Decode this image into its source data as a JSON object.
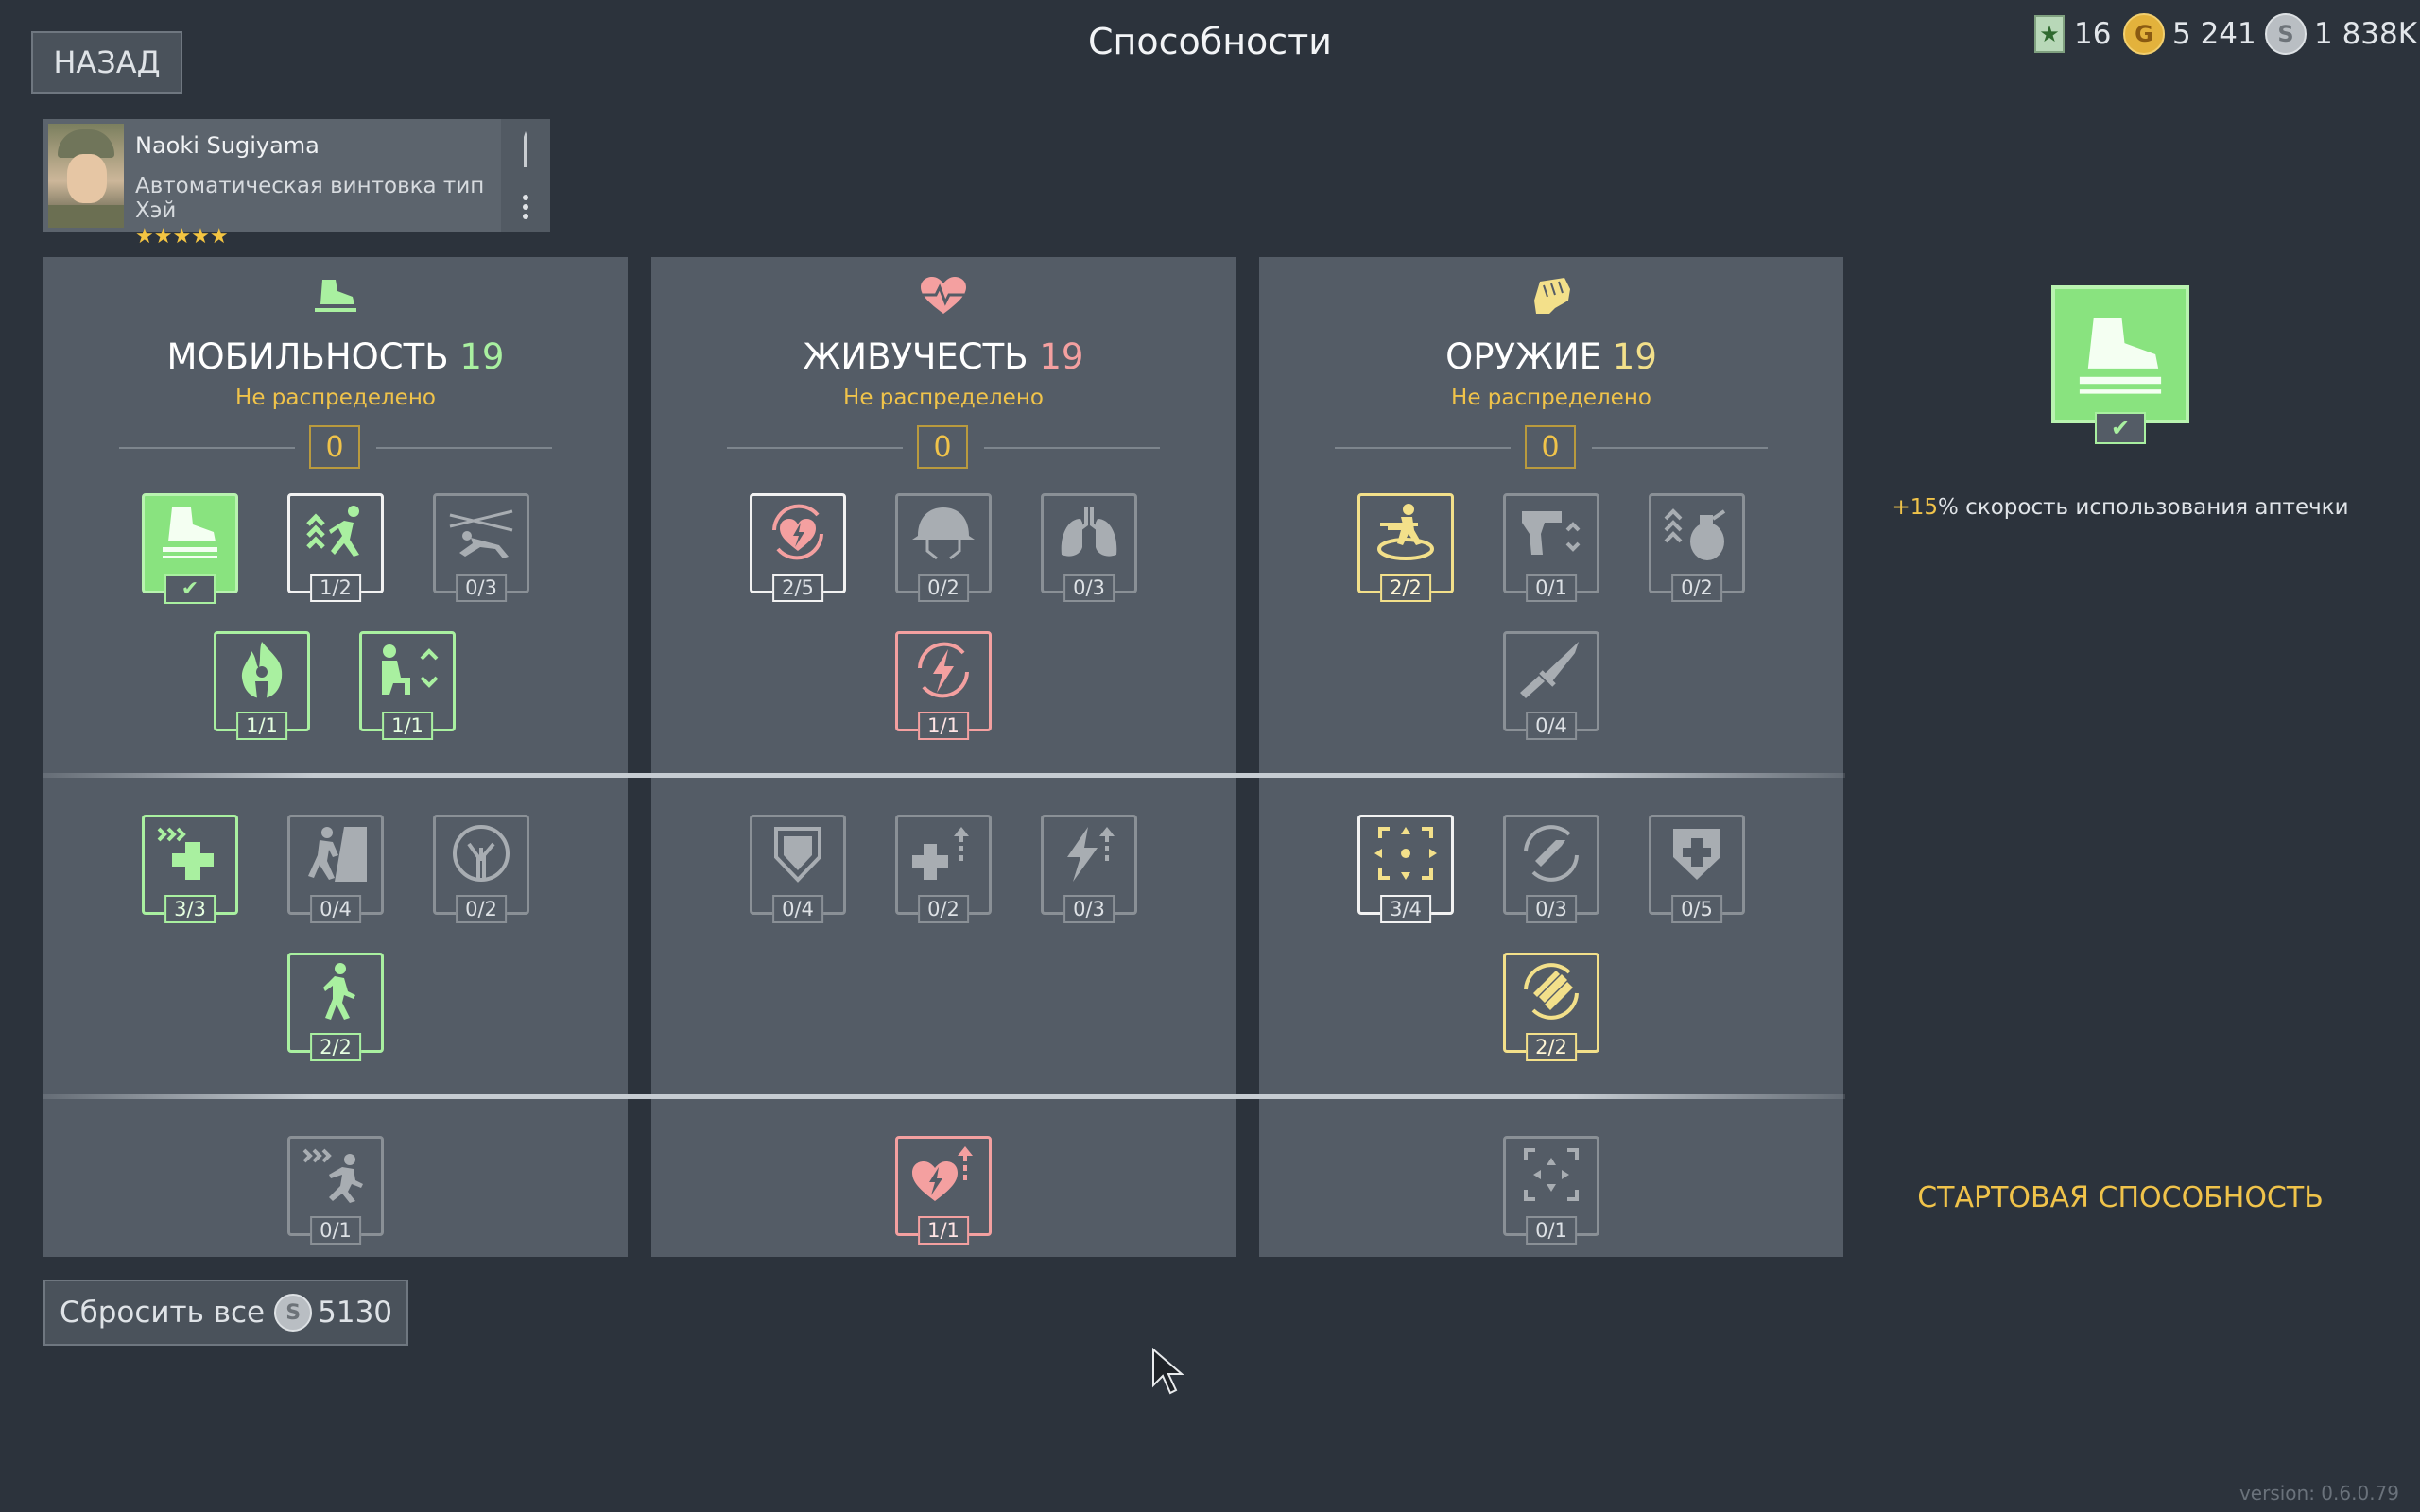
{
  "header": {
    "back_label": "НАЗАД",
    "title": "Способности",
    "currencies": [
      {
        "icon": "star-rank-icon",
        "value": "16"
      },
      {
        "icon": "gold-coin-icon",
        "symbol": "G",
        "value": "5 241"
      },
      {
        "icon": "silver-coin-icon",
        "symbol": "S",
        "value": "1 838K"
      }
    ]
  },
  "character": {
    "name": "Naoki Sugiyama",
    "weapon": "Автоматическая винтовка тип Хэй",
    "stars": "★★★★★"
  },
  "panels": [
    {
      "icon": "boot-icon",
      "title": "МОБИЛЬНОСТЬ",
      "level": "19",
      "subtitle": "Не распределено",
      "points": "0",
      "color": "#a9f0a0",
      "skills": [
        {
          "name": "boot-icon",
          "count": "",
          "state": "selected"
        },
        {
          "name": "jump-icon",
          "count": "1/2",
          "state": "white"
        },
        {
          "name": "crawl-wire-icon",
          "count": "0/3",
          "state": "grey"
        },
        {
          "name": "fire-resist-icon",
          "count": "1/1",
          "state": "green"
        },
        {
          "name": "kneel-swap-icon",
          "count": "1/1",
          "state": "green"
        },
        {
          "name": "fast-heal-icon",
          "count": "3/3",
          "state": "green"
        },
        {
          "name": "climb-icon",
          "count": "0/4",
          "state": "grey"
        },
        {
          "name": "tree-icon",
          "count": "0/2",
          "state": "grey"
        },
        {
          "name": "walk-icon",
          "count": "2/2",
          "state": "green"
        },
        {
          "name": "sprint-icon",
          "count": "0/1",
          "state": "grey"
        }
      ]
    },
    {
      "icon": "heart-pulse-icon",
      "title": "ЖИВУЧЕСТЬ",
      "level": "19",
      "subtitle": "Не распределено",
      "points": "0",
      "color": "#f4a0a0",
      "skills": [
        {
          "name": "heart-regen-icon",
          "count": "2/5",
          "state": "white"
        },
        {
          "name": "helmet-icon",
          "count": "0/2",
          "state": "grey"
        },
        {
          "name": "lungs-icon",
          "count": "0/3",
          "state": "grey"
        },
        {
          "name": "energy-regen-icon",
          "count": "1/1",
          "state": "red"
        },
        {
          "name": "shield-icon",
          "count": "0/4",
          "state": "grey"
        },
        {
          "name": "heal-up-icon",
          "count": "0/2",
          "state": "grey"
        },
        {
          "name": "energy-up-icon",
          "count": "0/3",
          "state": "grey"
        },
        {
          "name": "heart-energy-up-icon",
          "count": "1/1",
          "state": "red"
        }
      ]
    },
    {
      "icon": "fist-icon",
      "title": "ОРУЖИЕ",
      "level": "19",
      "subtitle": "Не распределено",
      "points": "0",
      "color": "#f3e08a",
      "skills": [
        {
          "name": "aim-move-icon",
          "count": "2/2",
          "state": "yellow"
        },
        {
          "name": "pistol-swap-icon",
          "count": "0/1",
          "state": "grey"
        },
        {
          "name": "grenade-icon",
          "count": "0/2",
          "state": "grey"
        },
        {
          "name": "knife-icon",
          "count": "0/4",
          "state": "grey"
        },
        {
          "name": "crosshair-icon",
          "count": "3/4",
          "state": "white"
        },
        {
          "name": "reload-icon",
          "count": "0/3",
          "state": "grey"
        },
        {
          "name": "armor-heal-icon",
          "count": "0/5",
          "state": "grey"
        },
        {
          "name": "ammo-reload-icon",
          "count": "2/2",
          "state": "yellow"
        },
        {
          "name": "focus-icon",
          "count": "0/1",
          "state": "grey"
        }
      ]
    }
  ],
  "selected": {
    "icon": "boot-icon",
    "desc_value": "+15",
    "desc_text": "% скорость использования аптечки",
    "label": "СТАРТОВАЯ СПОСОБНОСТЬ"
  },
  "footer": {
    "reset_label": "Сбросить все",
    "reset_cost": "5130",
    "version": "version: 0.6.0.79"
  }
}
